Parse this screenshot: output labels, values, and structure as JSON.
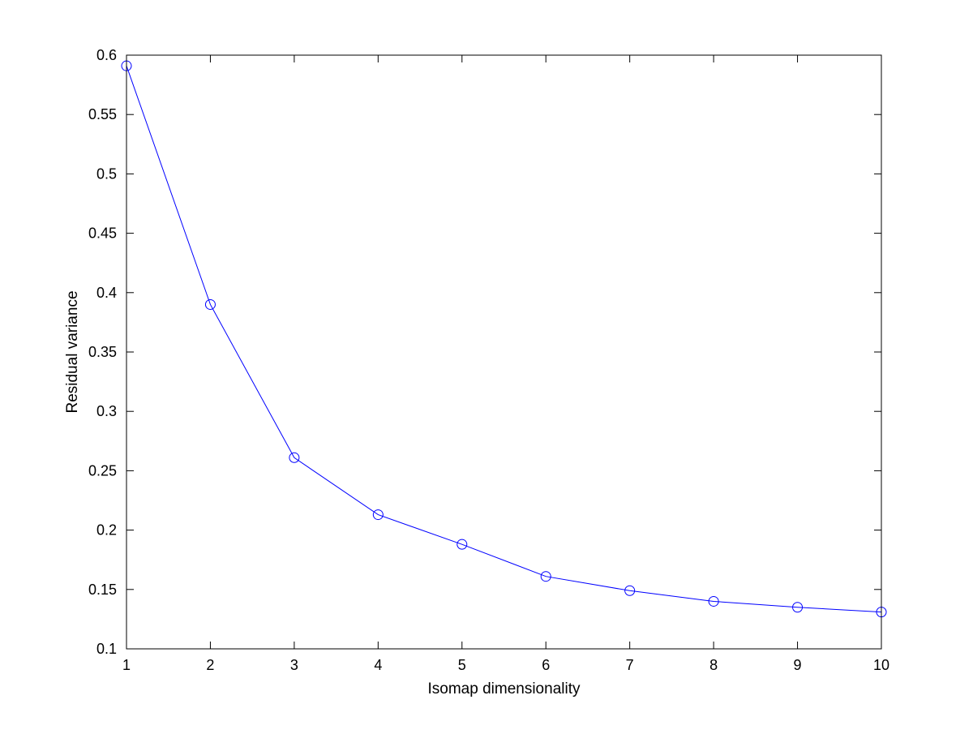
{
  "chart_data": {
    "type": "line",
    "title": "",
    "xlabel": "Isomap dimensionality",
    "ylabel": "Residual variance",
    "x": [
      1,
      2,
      3,
      4,
      5,
      6,
      7,
      8,
      9,
      10
    ],
    "series": [
      {
        "values": [
          0.591,
          0.39,
          0.261,
          0.213,
          0.188,
          0.161,
          0.149,
          0.14,
          0.135,
          0.131
        ],
        "color": "#0000ff",
        "marker": "circle"
      }
    ],
    "xlim": [
      1,
      10
    ],
    "ylim": [
      0.1,
      0.6
    ],
    "xticks": [
      1,
      2,
      3,
      4,
      5,
      6,
      7,
      8,
      9,
      10
    ],
    "xtick_labels": [
      "1",
      "2",
      "3",
      "4",
      "5",
      "6",
      "7",
      "8",
      "9",
      "10"
    ],
    "yticks": [
      0.1,
      0.15,
      0.2,
      0.25,
      0.3,
      0.35,
      0.4,
      0.45,
      0.5,
      0.55,
      0.6
    ],
    "ytick_labels": [
      "0.1",
      "0.15",
      "0.2",
      "0.25",
      "0.3",
      "0.35",
      "0.4",
      "0.45",
      "0.5",
      "0.55",
      "0.6"
    ],
    "grid": false,
    "legend": "none",
    "axis_color": "#000000",
    "background": "#ffffff"
  }
}
